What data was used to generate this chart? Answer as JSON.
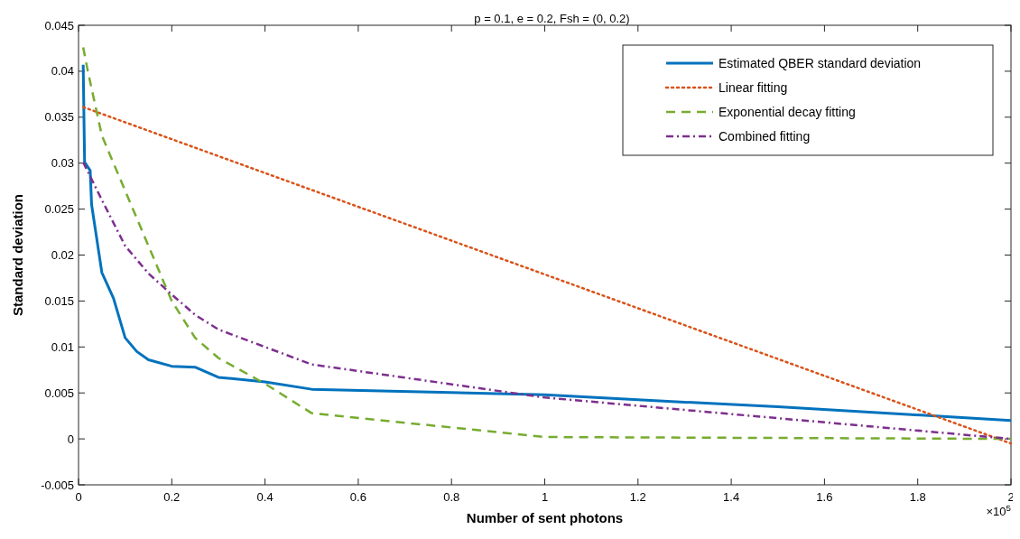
{
  "chart_data": {
    "type": "line",
    "title": "p = 0.1, e = 0.2, Fsh =  (0, 0.2)",
    "xlabel": "Number of sent photons",
    "ylabel": "Standard deviation",
    "annotations": [
      "×10$^{5}$"
    ],
    "xlim": [
      0,
      2
    ],
    "xticks": [
      0,
      0.2,
      0.4,
      0.6,
      0.8,
      1,
      1.2,
      1.4,
      1.6,
      1.8,
      2
    ],
    "ylim": [
      -0.005,
      0.045
    ],
    "yticks": [
      -0.005,
      0,
      0.005,
      0.01,
      0.015,
      0.02,
      0.025,
      0.03,
      0.035,
      0.04,
      0.045
    ],
    "grid": false,
    "legend": "top right",
    "marker": "none",
    "series": [
      {
        "name": "Estimated QBER standard deviation",
        "color": "#0072bd",
        "line_style": "solid",
        "x": [
          0.01,
          0.013,
          0.025,
          0.028,
          0.05,
          0.075,
          0.1,
          0.125,
          0.15,
          0.2,
          0.25,
          0.3,
          0.4,
          0.5,
          1,
          1.3,
          1.5,
          2
        ],
        "values": [
          0.0407,
          0.0301,
          0.0292,
          0.0255,
          0.0181,
          0.0153,
          0.011,
          0.0095,
          0.0086,
          0.0079,
          0.0078,
          0.0067,
          0.0062,
          0.0054,
          0.0048,
          0.004,
          0.0035,
          0.002
        ]
      },
      {
        "name": "Linear fitting",
        "color": "#d95319",
        "line_style": "dotted",
        "x": [
          0.01,
          2
        ],
        "values": [
          0.0361,
          -0.0005
        ]
      },
      {
        "name": "Exponential decay fitting",
        "color": "#77ac30",
        "line_style": "dashed",
        "x": [
          0.01,
          0.02,
          0.05,
          0.1,
          0.15,
          0.2,
          0.25,
          0.3,
          0.4,
          0.5,
          1,
          2
        ],
        "values": [
          0.0426,
          0.04,
          0.033,
          0.027,
          0.021,
          0.015,
          0.011,
          0.0088,
          0.006,
          0.0028,
          0.0002,
          0
        ]
      },
      {
        "name": "Combined fitting",
        "color": "#7e2f8e",
        "line_style": "dashdot",
        "x": [
          0.01,
          0.05,
          0.1,
          0.15,
          0.2,
          0.25,
          0.3,
          0.5,
          1,
          2
        ],
        "values": [
          0.0301,
          0.026,
          0.021,
          0.018,
          0.0157,
          0.0135,
          0.0119,
          0.0081,
          0.0045,
          0
        ]
      }
    ]
  }
}
